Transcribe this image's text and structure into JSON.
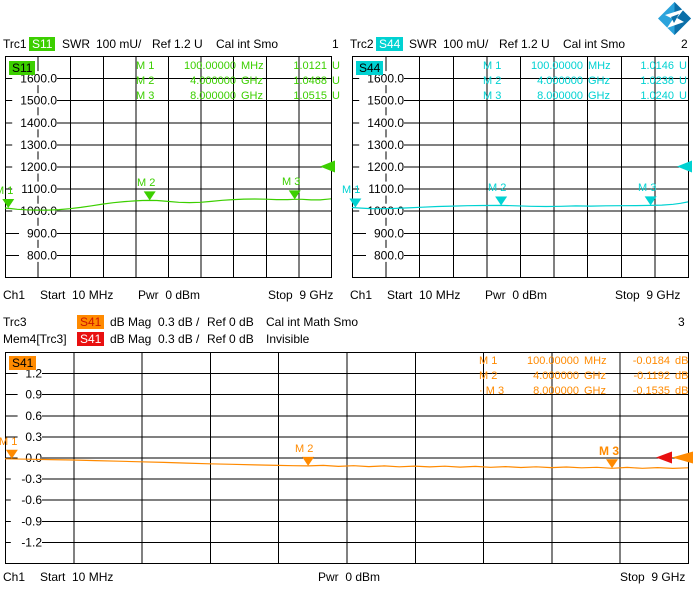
{
  "colors": {
    "trc1": "#3ccf00",
    "trc2": "#00d2d2",
    "trc3": "#ff8a00",
    "mem4": "#e81010",
    "grid": "#000000",
    "logo_light": "#2aa3dc",
    "logo_dark": "#0b6fa8"
  },
  "logo": {
    "name": "rohde-schwarz-logo"
  },
  "panel1": {
    "header": {
      "trace": "Trc1",
      "meas": "S11",
      "format": "SWR",
      "scale": "100 mU/",
      "ref": "Ref 1.2 U",
      "status": "Cal int Smo",
      "number": "1"
    },
    "grid_badge": "S11",
    "markers": [
      {
        "name": "M 1",
        "freq": "100.00000",
        "funit": "MHz",
        "val": "1.0121",
        "vunit": "U"
      },
      {
        "name": "M 2",
        "freq": "4.000000",
        "funit": "GHz",
        "val": "1.0468",
        "vunit": "U"
      },
      {
        "name": "M 3",
        "freq": "8.000000",
        "funit": "GHz",
        "val": "1.0515",
        "vunit": "U"
      }
    ],
    "footer": {
      "ch": "Ch1",
      "start": "Start  10 MHz",
      "pwr": "Pwr  0 dBm",
      "stop": "Stop  9 GHz"
    }
  },
  "panel2": {
    "header": {
      "trace": "Trc2",
      "meas": "S44",
      "format": "SWR",
      "scale": "100 mU/",
      "ref": "Ref 1.2 U",
      "status": "Cal int Smo",
      "number": "2"
    },
    "grid_badge": "S44",
    "markers": [
      {
        "name": "M 1",
        "freq": "100.00000",
        "funit": "MHz",
        "val": "1.0146",
        "vunit": "U"
      },
      {
        "name": "M 2",
        "freq": "4.000000",
        "funit": "GHz",
        "val": "1.0238",
        "vunit": "U"
      },
      {
        "name": "M 3",
        "freq": "8.000000",
        "funit": "GHz",
        "val": "1.0240",
        "vunit": "U"
      }
    ],
    "footer": {
      "ch": "Ch1",
      "start": "Start  10 MHz",
      "pwr": "Pwr  0 dBm",
      "stop": "Stop  9 GHz"
    }
  },
  "panel3": {
    "header_row1": {
      "trace": "Trc3",
      "meas": "S41",
      "format": "dB Mag",
      "scale": "0.3 dB /",
      "ref": "Ref 0 dB",
      "status": "Cal int Math Smo",
      "number": "3"
    },
    "header_row2": {
      "trace": "Mem4[Trc3]",
      "meas": "S41",
      "format": "dB Mag",
      "scale": "0.3 dB /",
      "ref": "Ref 0 dB",
      "status": "Invisible"
    },
    "grid_badge": "S41",
    "markers": [
      {
        "bullet": "",
        "name": "M 1",
        "freq": "100.00000",
        "funit": "MHz",
        "val": "-0.0184",
        "vunit": "dB"
      },
      {
        "bullet": "",
        "name": "M 2",
        "freq": "4.000000",
        "funit": "GHz",
        "val": "-0.1192",
        "vunit": "dB"
      },
      {
        "bullet": "· ",
        "name": "M 3",
        "freq": "8.000000",
        "funit": "GHz",
        "val": "-0.1535",
        "vunit": "dB"
      }
    ],
    "footer": {
      "ch": "Ch1",
      "start": "Start  10 MHz",
      "pwr": "Pwr  0 dBm",
      "stop": "Stop  9 GHz"
    }
  },
  "chart_data": [
    {
      "type": "line",
      "name": "Trc1 S11 SWR",
      "x_unit": "GHz",
      "x_range": [
        0.01,
        9
      ],
      "y_unit": "U",
      "y_top": 1.7,
      "y_bottom": 0.7,
      "y_per_div": 0.1,
      "ref_level": 1.2,
      "grid": "on",
      "legend_position": "none",
      "y_ticks": [
        "1600.0",
        "1500.0",
        "1400.0",
        "1300.0",
        "1200.0",
        "1100.0",
        "1000.0",
        "900.0",
        "800.0"
      ],
      "markers": [
        {
          "label": "M 1",
          "x": 0.1,
          "y": 1.0121
        },
        {
          "label": "M 2",
          "x": 4.0,
          "y": 1.0468
        },
        {
          "label": "M 3",
          "x": 8.0,
          "y": 1.0515
        }
      ],
      "points": [
        [
          0.01,
          1.0121
        ],
        [
          0.15,
          1.01
        ],
        [
          0.35,
          1.0065
        ],
        [
          0.6,
          1.004
        ],
        [
          0.9,
          1.0025
        ],
        [
          1.2,
          1.0025
        ],
        [
          1.5,
          1.005
        ],
        [
          1.8,
          1.009
        ],
        [
          2.1,
          1.015
        ],
        [
          2.4,
          1.022
        ],
        [
          2.7,
          1.03
        ],
        [
          3.0,
          1.036
        ],
        [
          3.3,
          1.041
        ],
        [
          3.6,
          1.0445
        ],
        [
          3.8,
          1.046
        ],
        [
          4.0,
          1.0468
        ],
        [
          4.2,
          1.046
        ],
        [
          4.5,
          1.042
        ],
        [
          4.8,
          1.038
        ],
        [
          5.1,
          1.0365
        ],
        [
          5.4,
          1.038
        ],
        [
          5.7,
          1.042
        ],
        [
          6.0,
          1.047
        ],
        [
          6.3,
          1.05
        ],
        [
          6.6,
          1.0525
        ],
        [
          6.9,
          1.053
        ],
        [
          7.2,
          1.052
        ],
        [
          7.5,
          1.05
        ],
        [
          7.8,
          1.05
        ],
        [
          8.0,
          1.0515
        ],
        [
          8.2,
          1.0515
        ],
        [
          8.45,
          1.049
        ],
        [
          8.7,
          1.049
        ],
        [
          8.9,
          1.052
        ],
        [
          9.0,
          1.054
        ]
      ]
    },
    {
      "type": "line",
      "name": "Trc2 S44 SWR",
      "x_unit": "GHz",
      "x_range": [
        0.01,
        9
      ],
      "y_unit": "U",
      "y_top": 1.7,
      "y_bottom": 0.7,
      "y_per_div": 0.1,
      "ref_level": 1.2,
      "grid": "on",
      "legend_position": "none",
      "y_ticks": [
        "1600.0",
        "1500.0",
        "1400.0",
        "1300.0",
        "1200.0",
        "1100.0",
        "1000.0",
        "900.0",
        "800.0"
      ],
      "markers": [
        {
          "label": "M 1",
          "x": 0.1,
          "y": 1.0146
        },
        {
          "label": "M 2",
          "x": 4.0,
          "y": 1.0238
        },
        {
          "label": "M 3",
          "x": 8.0,
          "y": 1.024
        }
      ],
      "points": [
        [
          0.01,
          1.0146
        ],
        [
          0.2,
          1.012
        ],
        [
          0.5,
          1.0095
        ],
        [
          0.8,
          1.009
        ],
        [
          1.1,
          1.01
        ],
        [
          1.5,
          1.0125
        ],
        [
          1.9,
          1.016
        ],
        [
          2.3,
          1.019
        ],
        [
          2.7,
          1.021
        ],
        [
          3.1,
          1.0225
        ],
        [
          3.5,
          1.0235
        ],
        [
          4.0,
          1.0238
        ],
        [
          4.4,
          1.022
        ],
        [
          4.8,
          1.02
        ],
        [
          5.2,
          1.019
        ],
        [
          5.6,
          1.02
        ],
        [
          6.0,
          1.0215
        ],
        [
          6.4,
          1.021
        ],
        [
          6.8,
          1.022
        ],
        [
          7.2,
          1.0225
        ],
        [
          7.6,
          1.023
        ],
        [
          8.0,
          1.024
        ],
        [
          8.3,
          1.0255
        ],
        [
          8.6,
          1.029
        ],
        [
          8.8,
          1.0335
        ],
        [
          9.0,
          1.04
        ]
      ]
    },
    {
      "type": "line",
      "name": "Trc3 S41 dB Mag",
      "x_unit": "GHz",
      "x_range": [
        0.01,
        9
      ],
      "y_unit": "dB",
      "y_top": 1.5,
      "y_bottom": -1.5,
      "y_per_div": 0.3,
      "ref_level": 0,
      "grid": "on",
      "legend_position": "none",
      "memory_trace": {
        "name": "Mem4[Trc3]",
        "visible": false,
        "ref_level": 0
      },
      "y_ticks": [
        "1.2",
        "0.9",
        "0.6",
        "0.3",
        "0.0",
        "-0.3",
        "-0.6",
        "-0.9",
        "-1.2"
      ],
      "markers": [
        {
          "label": "M 1",
          "x": 0.1,
          "y": -0.0184
        },
        {
          "label": "M 2",
          "x": 4.0,
          "y": -0.1192
        },
        {
          "label": "M 3",
          "x": 8.0,
          "y": -0.1535,
          "bold": true
        }
      ],
      "points": [
        [
          0.01,
          -0.0184
        ],
        [
          0.3,
          -0.024
        ],
        [
          0.6,
          -0.03
        ],
        [
          0.9,
          -0.036
        ],
        [
          1.2,
          -0.044
        ],
        [
          1.5,
          -0.052
        ],
        [
          1.8,
          -0.061
        ],
        [
          2.1,
          -0.07
        ],
        [
          2.4,
          -0.08
        ],
        [
          2.7,
          -0.089
        ],
        [
          3.0,
          -0.097
        ],
        [
          3.3,
          -0.105
        ],
        [
          3.6,
          -0.112
        ],
        [
          3.8,
          -0.116
        ],
        [
          4.0,
          -0.1192
        ],
        [
          4.2,
          -0.112
        ],
        [
          4.4,
          -0.126
        ],
        [
          4.6,
          -0.116
        ],
        [
          4.8,
          -0.13
        ],
        [
          5.0,
          -0.119
        ],
        [
          5.2,
          -0.132
        ],
        [
          5.4,
          -0.122
        ],
        [
          5.6,
          -0.134
        ],
        [
          5.8,
          -0.124
        ],
        [
          6.0,
          -0.136
        ],
        [
          6.2,
          -0.127
        ],
        [
          6.4,
          -0.139
        ],
        [
          6.6,
          -0.13
        ],
        [
          6.8,
          -0.142
        ],
        [
          7.0,
          -0.132
        ],
        [
          7.2,
          -0.144
        ],
        [
          7.4,
          -0.135
        ],
        [
          7.6,
          -0.147
        ],
        [
          7.8,
          -0.139
        ],
        [
          8.0,
          -0.1535
        ],
        [
          8.2,
          -0.141
        ],
        [
          8.4,
          -0.153
        ],
        [
          8.6,
          -0.143
        ],
        [
          8.8,
          -0.155
        ],
        [
          9.0,
          -0.147
        ]
      ]
    }
  ]
}
